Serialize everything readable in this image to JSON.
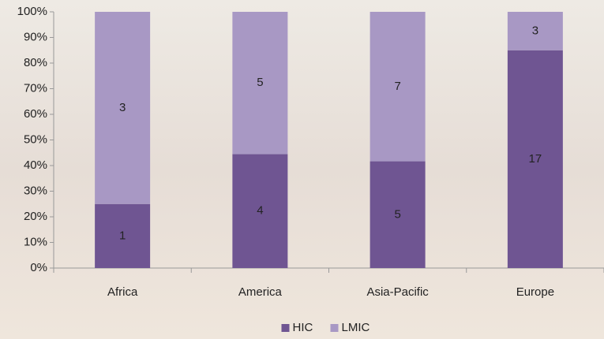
{
  "chart_data": {
    "type": "percent_stacked_bar",
    "categories": [
      "Africa",
      "America",
      "Asia-Pacific",
      "Europe"
    ],
    "series": [
      {
        "name": "HIC",
        "color": "#6f5592",
        "values": [
          1,
          4,
          5,
          17
        ]
      },
      {
        "name": "LMIC",
        "color": "#a898c4",
        "values": [
          3,
          5,
          7,
          3
        ]
      }
    ],
    "ylim": [
      0,
      100
    ],
    "yticks": [
      {
        "value": 0,
        "label": "0%"
      },
      {
        "value": 10,
        "label": "10%"
      },
      {
        "value": 20,
        "label": "20%"
      },
      {
        "value": 30,
        "label": "30%"
      },
      {
        "value": 40,
        "label": "40%"
      },
      {
        "value": 50,
        "label": "50%"
      },
      {
        "value": 60,
        "label": "60%"
      },
      {
        "value": 70,
        "label": "70%"
      },
      {
        "value": 80,
        "label": "80%"
      },
      {
        "value": 90,
        "label": "90%"
      },
      {
        "value": 100,
        "label": "100%"
      }
    ],
    "legend": "bottom"
  }
}
